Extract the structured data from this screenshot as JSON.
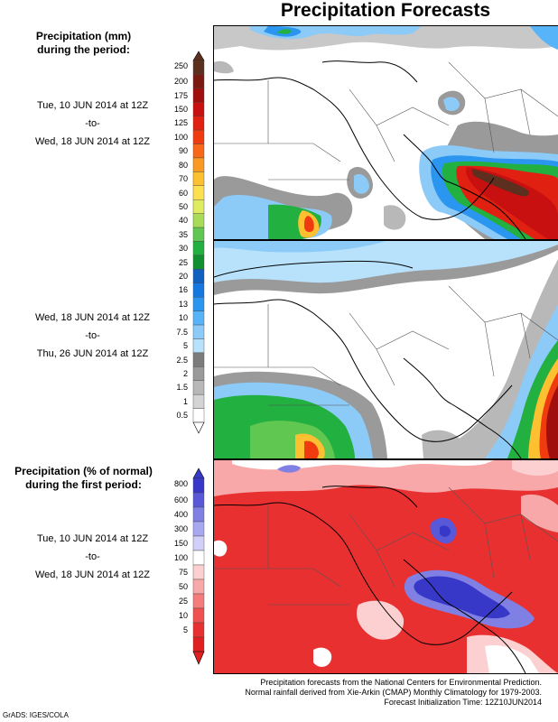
{
  "title": "Precipitation Forecasts",
  "scale1": {
    "header": [
      "Precipitation (mm)",
      "during the period:"
    ],
    "labels": [
      "250",
      "200",
      "175",
      "150",
      "125",
      "100",
      "90",
      "80",
      "70",
      "60",
      "50",
      "40",
      "35",
      "30",
      "25",
      "20",
      "16",
      "13",
      "10",
      "7.5",
      "5",
      "2.5",
      "2",
      "1.5",
      "1",
      "0.5"
    ],
    "colors": [
      "#5c2f1e",
      "#7a1a10",
      "#a00e0e",
      "#c81010",
      "#e02010",
      "#f03a10",
      "#f86818",
      "#fb9a22",
      "#fcc030",
      "#fde050",
      "#e0ec60",
      "#a8dc58",
      "#60c850",
      "#22b040",
      "#109030",
      "#1060c0",
      "#1478e0",
      "#2a96f0",
      "#58b4f8",
      "#8ccaf8",
      "#b8e2fc",
      "#7c7c7c",
      "#9a9a9a",
      "#b8b8b8",
      "#d4d4d4",
      "#ffffff"
    ]
  },
  "period1": {
    "from": "Tue, 10 JUN 2014 at 12Z",
    "sep": "-to-",
    "to": "Wed, 18 JUN 2014 at 12Z"
  },
  "period2": {
    "from": "Wed, 18 JUN 2014 at 12Z",
    "sep": "-to-",
    "to": "Thu, 26 JUN 2014 at 12Z"
  },
  "scale2": {
    "header": [
      "Precipitation (% of normal)",
      "during the first period:"
    ],
    "labels": [
      "800",
      "600",
      "400",
      "300",
      "150",
      "100",
      "75",
      "50",
      "25",
      "10",
      "5"
    ],
    "colors": [
      "#3838c8",
      "#5858d8",
      "#8080e4",
      "#a8a8f0",
      "#d0d0f8",
      "#ffffff",
      "#fcd0d0",
      "#f8a8a8",
      "#f47c7c",
      "#f05050",
      "#e83030",
      "#e02020"
    ]
  },
  "period3": {
    "from": "Tue, 10 JUN 2014 at 12Z",
    "sep": "-to-",
    "to": "Wed, 18 JUN 2014 at 12Z"
  },
  "footer": [
    "Precipitation forecasts from the National Centers for Environmental Prediction.",
    "Normal rainfall derived from Xie-Arkin (CMAP) Monthly Climatology for 1979-2003.",
    "Forecast Initialization Time: 12Z10JUN2014"
  ],
  "credit": "GrADS: IGES/COLA"
}
